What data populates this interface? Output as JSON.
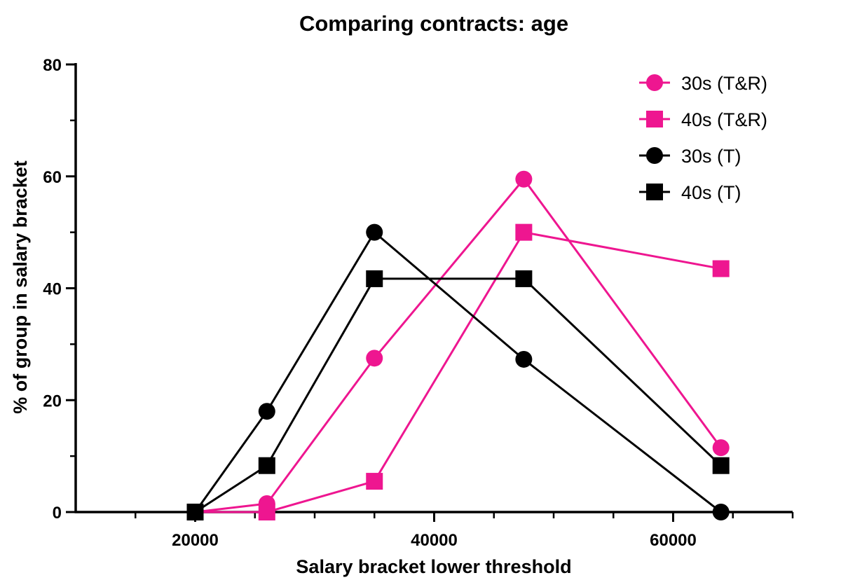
{
  "chart_data": {
    "type": "line",
    "title": "Comparing contracts: age",
    "xlabel": "Salary bracket lower threshold",
    "ylabel": "% of group in salary bracket",
    "xlim": [
      10000,
      70000
    ],
    "ylim": [
      0,
      80
    ],
    "xticks": [
      20000,
      40000,
      60000
    ],
    "xtick_labels": [
      "20000",
      "40000",
      "60000"
    ],
    "yticks": [
      0,
      20,
      40,
      60,
      80
    ],
    "ytick_labels": [
      "0",
      "20",
      "40",
      "60",
      "80"
    ],
    "grid": false,
    "legend_position": "top-right",
    "series": [
      {
        "name": "30s (T&R)",
        "color": "#ee1690",
        "marker": "circle",
        "x": [
          20000,
          26000,
          35000,
          47500,
          64000
        ],
        "y": [
          0,
          1.5,
          27.5,
          59.5,
          11.5
        ]
      },
      {
        "name": "40s (T&R)",
        "color": "#ee1690",
        "marker": "square",
        "x": [
          20000,
          26000,
          35000,
          47500,
          64000
        ],
        "y": [
          0,
          0,
          5.5,
          50,
          43.5
        ]
      },
      {
        "name": "30s (T)",
        "color": "#000000",
        "marker": "circle",
        "x": [
          20000,
          26000,
          35000,
          47500,
          64000
        ],
        "y": [
          0,
          18,
          50,
          27.3,
          0
        ]
      },
      {
        "name": "40s (T)",
        "color": "#000000",
        "marker": "square",
        "x": [
          20000,
          26000,
          35000,
          47500,
          64000
        ],
        "y": [
          0,
          8.3,
          41.7,
          41.7,
          8.3
        ]
      }
    ]
  }
}
